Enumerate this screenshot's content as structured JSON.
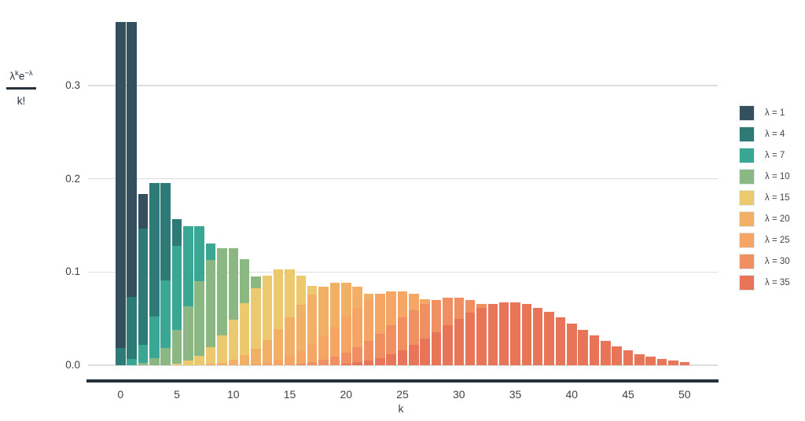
{
  "chart_data": {
    "type": "bar",
    "title": "",
    "xlabel": "k",
    "ylabel_formula": {
      "num_base1": "λ",
      "num_sup1": "k",
      "num_base2": "e",
      "num_sup2": "−λ",
      "denominator": "k!"
    },
    "x_ticks": [
      0,
      5,
      10,
      15,
      20,
      25,
      30,
      35,
      40,
      45,
      50
    ],
    "y_ticks": [
      "0.0",
      "0.1",
      "0.2",
      "0.3"
    ],
    "xlim": [
      -2.5,
      53
    ],
    "ylim": [
      0,
      0.39
    ],
    "grid": "horizontal",
    "legend_position": "right",
    "bar_overlap": "overlaid, later series drawn in front",
    "series": [
      {
        "name": "λ = 1",
        "lambda": 1,
        "color": "#34505e",
        "k_start": 0,
        "values": [
          0.3679,
          0.3679,
          0.1839,
          0.0613,
          0.0153,
          0.0031,
          0.0005
        ]
      },
      {
        "name": "λ = 4",
        "lambda": 4,
        "color": "#2e7a77",
        "k_start": 0,
        "values": [
          0.0183,
          0.0733,
          0.1465,
          0.1954,
          0.1954,
          0.1563,
          0.1042,
          0.0595,
          0.0298,
          0.0132,
          0.0053,
          0.0019,
          0.0006
        ]
      },
      {
        "name": "λ = 7",
        "lambda": 7,
        "color": "#3aa795",
        "k_start": 0,
        "values": [
          0.0009,
          0.0064,
          0.0223,
          0.0521,
          0.0912,
          0.1277,
          0.149,
          0.149,
          0.1304,
          0.1014,
          0.071,
          0.0452,
          0.0263,
          0.0142,
          0.0071,
          0.0033,
          0.0014,
          0.0006
        ]
      },
      {
        "name": "λ = 10",
        "lambda": 10,
        "color": "#8bb783",
        "k_start": 1,
        "values": [
          0.0005,
          0.0023,
          0.0076,
          0.0189,
          0.0378,
          0.0631,
          0.0901,
          0.1126,
          0.1251,
          0.1251,
          0.1137,
          0.0948,
          0.0729,
          0.0521,
          0.0347,
          0.0217,
          0.0128,
          0.0071,
          0.0037,
          0.0019,
          0.0009
        ]
      },
      {
        "name": "λ = 15",
        "lambda": 15,
        "color": "#ecc96e",
        "k_start": 5,
        "values": [
          0.0019,
          0.0048,
          0.0104,
          0.0194,
          0.0324,
          0.0486,
          0.0663,
          0.0829,
          0.0956,
          0.1024,
          0.1024,
          0.096,
          0.0847,
          0.0706,
          0.0557,
          0.0418,
          0.0299,
          0.0204,
          0.0133,
          0.0083,
          0.005,
          0.0029,
          0.0016,
          0.0009
        ]
      },
      {
        "name": "λ = 20",
        "lambda": 20,
        "color": "#f1b066",
        "k_start": 8,
        "values": [
          0.0013,
          0.0029,
          0.0058,
          0.0106,
          0.0176,
          0.0271,
          0.0387,
          0.0516,
          0.0646,
          0.076,
          0.0844,
          0.0888,
          0.0888,
          0.0846,
          0.0769,
          0.0669,
          0.0557,
          0.0446,
          0.0343,
          0.0254,
          0.0181,
          0.0125,
          0.0083,
          0.0054,
          0.0034,
          0.002,
          0.0012
        ]
      },
      {
        "name": "λ = 25",
        "lambda": 25,
        "color": "#f5a564",
        "k_start": 11,
        "values": [
          0.0008,
          0.0017,
          0.0033,
          0.0059,
          0.0099,
          0.0155,
          0.0227,
          0.0316,
          0.0415,
          0.0519,
          0.0618,
          0.0702,
          0.0763,
          0.0795,
          0.0795,
          0.0765,
          0.0708,
          0.0632,
          0.0545,
          0.0454,
          0.0366,
          0.0286,
          0.0217,
          0.0159,
          0.0114,
          0.0079,
          0.0053,
          0.0035,
          0.0023,
          0.0014
        ]
      },
      {
        "name": "λ = 30",
        "lambda": 30,
        "color": "#ef8f62",
        "k_start": 15,
        "values": [
          0.001,
          0.0019,
          0.0034,
          0.0057,
          0.0089,
          0.0134,
          0.0192,
          0.0261,
          0.0341,
          0.0426,
          0.0511,
          0.059,
          0.0655,
          0.0702,
          0.0726,
          0.0726,
          0.0703,
          0.0659,
          0.0599,
          0.0529,
          0.0453,
          0.0378,
          0.0306,
          0.0242,
          0.0186,
          0.0139,
          0.0102,
          0.0073,
          0.0051,
          0.0035,
          0.0023,
          0.0015
        ]
      },
      {
        "name": "λ = 35",
        "lambda": 35,
        "color": "#e87558",
        "k_start": 19,
        "values": [
          0.0011,
          0.002,
          0.0033,
          0.0052,
          0.008,
          0.0116,
          0.0163,
          0.0219,
          0.0284,
          0.0354,
          0.0428,
          0.0499,
          0.0563,
          0.0616,
          0.0654,
          0.0673,
          0.0673,
          0.0654,
          0.0619,
          0.057,
          0.0511,
          0.0447,
          0.0382,
          0.0318,
          0.0259,
          0.0206,
          0.016,
          0.0122,
          0.0091,
          0.0066,
          0.0047,
          0.0033
        ]
      }
    ]
  },
  "style": {
    "grid_color": "#dcdddd",
    "axis_color": "#26323c",
    "tick_label_color": "#3e4347",
    "legend_label_color": "#40464c",
    "background": "#ffffff"
  }
}
